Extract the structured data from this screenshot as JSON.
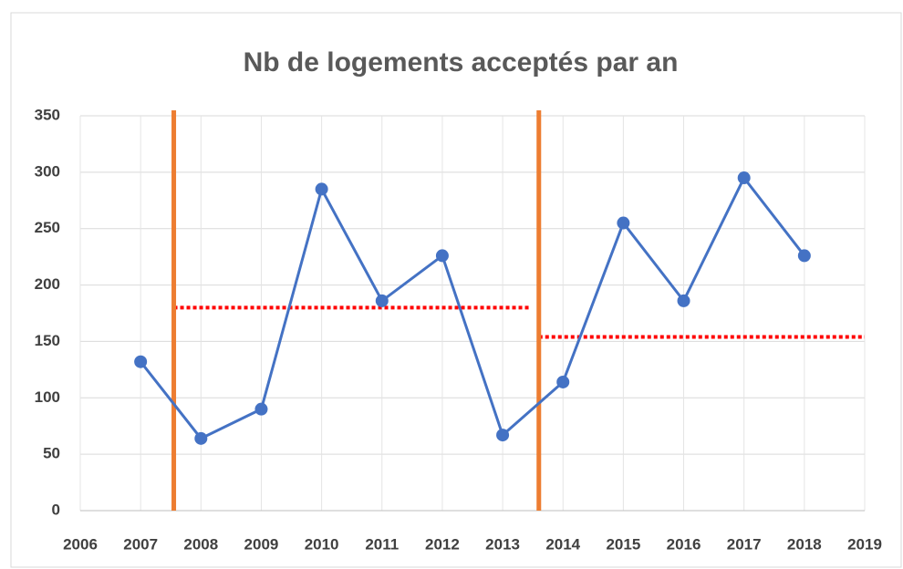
{
  "chart_data": {
    "type": "line",
    "title": "Nb de logements acceptés par an",
    "x": [
      2007,
      2008,
      2009,
      2010,
      2011,
      2012,
      2013,
      2014,
      2015,
      2016,
      2017,
      2018
    ],
    "series": [
      {
        "color": "#4472c4",
        "values": [
          132,
          64,
          90,
          285,
          186,
          226,
          67,
          114,
          255,
          186,
          295,
          226
        ]
      }
    ],
    "xlim": [
      2006,
      2019
    ],
    "xticks": [
      2006,
      2007,
      2008,
      2009,
      2010,
      2011,
      2012,
      2013,
      2014,
      2015,
      2016,
      2017,
      2018,
      2019
    ],
    "ylim": [
      0,
      350
    ],
    "yticks": [
      0,
      50,
      100,
      150,
      200,
      250,
      300,
      350
    ],
    "grid": true,
    "vlines": [
      {
        "x": 2007.55,
        "color": "#ed7d31"
      },
      {
        "x": 2013.6,
        "color": "#ed7d31"
      }
    ],
    "hlines": [
      {
        "y": 180,
        "x": [
          2007.55,
          2013.45
        ],
        "color": "#ff0000"
      },
      {
        "y": 154,
        "x": [
          2013.6,
          2019
        ],
        "color": "#ff0000"
      }
    ]
  }
}
